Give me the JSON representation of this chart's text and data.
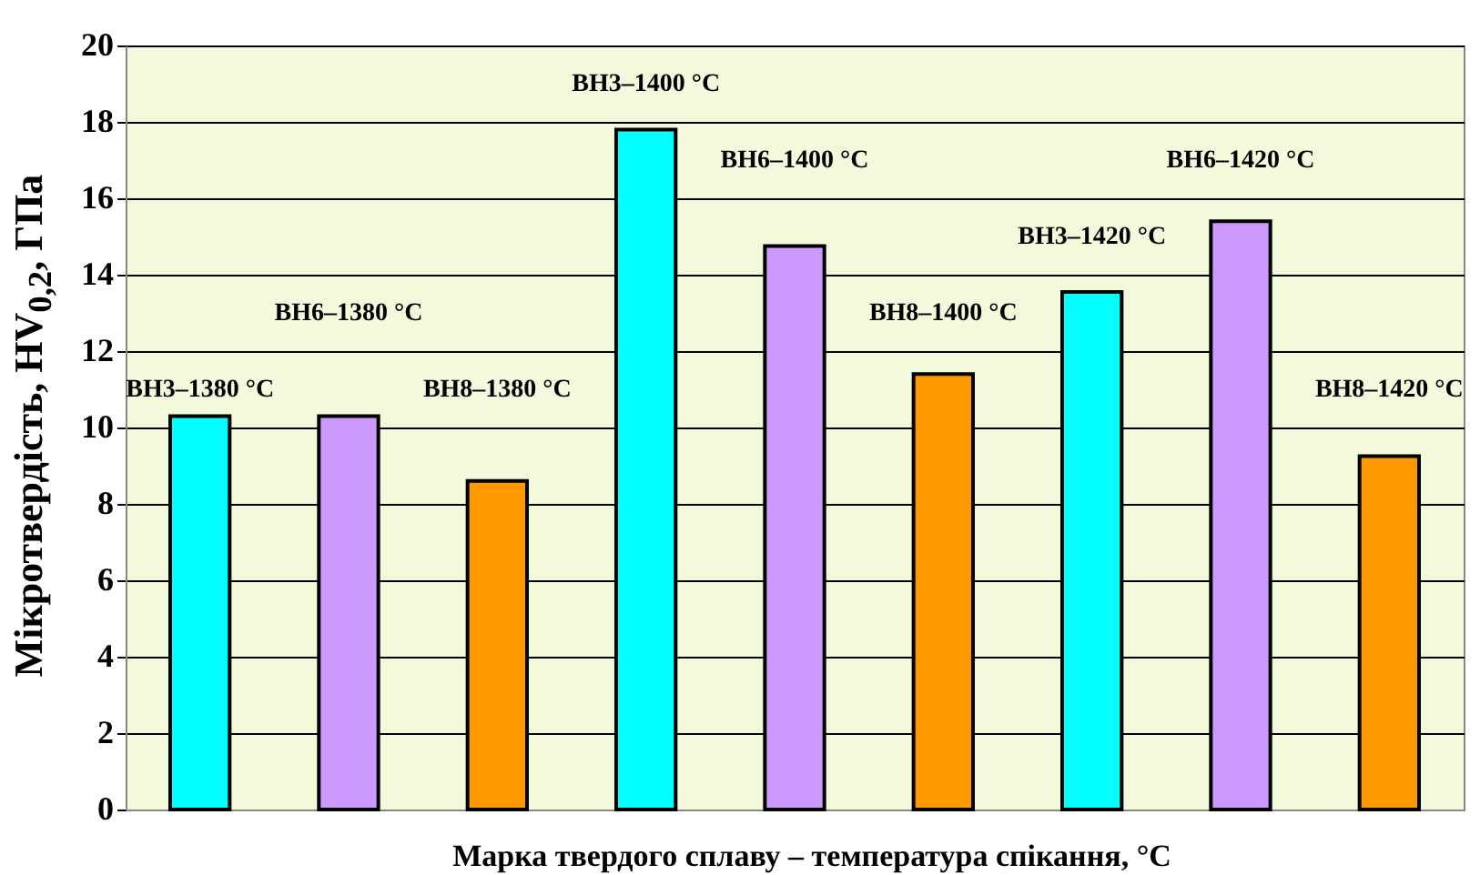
{
  "chart_data": {
    "type": "bar",
    "categories": [
      "ВН3–1380 °C",
      "ВН6–1380 °C",
      "ВН8–1380 °C",
      "ВН3–1400 °C",
      "ВН6–1400 °C",
      "ВН8–1400 °C",
      "ВН3–1420 °C",
      "ВН6–1420 °C",
      "ВН8–1420 °C"
    ],
    "values": [
      10.3,
      10.3,
      8.6,
      17.8,
      14.75,
      11.4,
      13.55,
      15.4,
      9.25
    ],
    "colors": [
      "#00ffff",
      "#cc99ff",
      "#ff9900",
      "#00ffff",
      "#cc99ff",
      "#ff9900",
      "#00ffff",
      "#cc99ff",
      "#ff9900"
    ],
    "xlabel": "Марка твердого сплаву – температура спікання, °C",
    "ylabel": "Мікротвердість, HV$_{0,2}$, ГПа",
    "ylim": [
      0,
      20
    ],
    "yticks": [
      0,
      2,
      4,
      6,
      8,
      10,
      12,
      14,
      16,
      18,
      20
    ],
    "grid": "y",
    "tick_labels": "y"
  }
}
